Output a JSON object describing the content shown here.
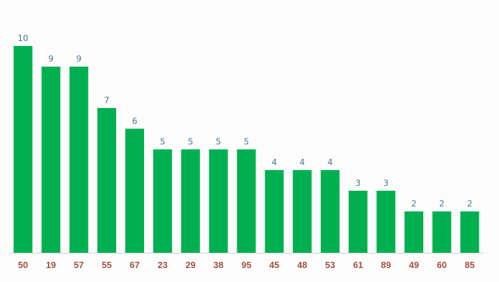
{
  "colors": {
    "bar": "#00b050",
    "axis": "#cfcfcf",
    "value_label": "#4a7b93",
    "tick_label": "#a0523f",
    "background": "#fcfcfc"
  },
  "chart_data": {
    "type": "bar",
    "categories": [
      "50",
      "19",
      "57",
      "55",
      "67",
      "23",
      "29",
      "38",
      "95",
      "45",
      "48",
      "53",
      "61",
      "89",
      "49",
      "60",
      "85"
    ],
    "values": [
      10,
      9,
      9,
      7,
      6,
      5,
      5,
      5,
      5,
      4,
      4,
      4,
      3,
      3,
      2,
      2,
      2
    ],
    "title": "",
    "xlabel": "",
    "ylabel": "",
    "ylim": [
      0,
      10
    ],
    "grid": false,
    "legend": "none",
    "data_labels": true
  }
}
